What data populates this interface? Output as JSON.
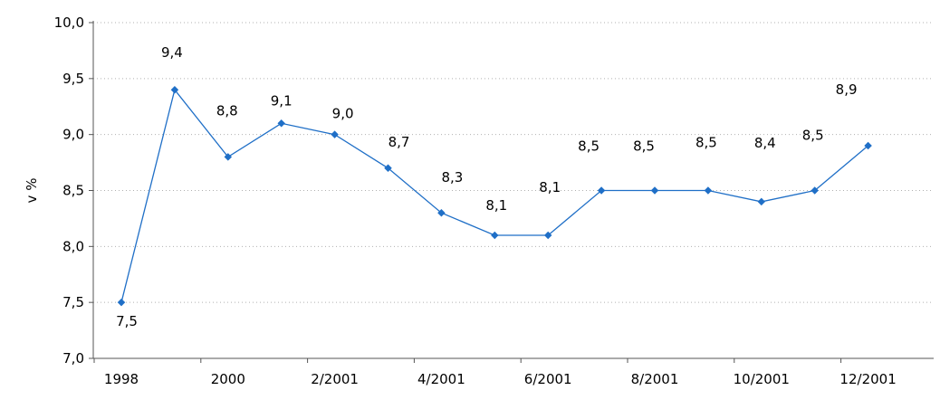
{
  "chart_data": {
    "type": "line",
    "title": "",
    "xlabel": "",
    "ylabel": "v %",
    "ylim": [
      7.0,
      10.0
    ],
    "ytick_values": [
      7.0,
      7.5,
      8.0,
      8.5,
      9.0,
      9.5,
      10.0
    ],
    "ytick_labels": [
      "7,0",
      "7,5",
      "8,0",
      "8,5",
      "9,0",
      "9,5",
      "10,0"
    ],
    "xtick_labels": [
      "1998",
      "2000",
      "2/2001",
      "4/2001",
      "6/2001",
      "8/2001",
      "10/2001",
      "12/2001"
    ],
    "grid": "horizontal dotted",
    "legend": "none",
    "series": [
      {
        "color": "#1f6fc7",
        "values": [
          7.5,
          9.4,
          8.8,
          9.1,
          9.0,
          8.7,
          8.3,
          8.1,
          8.1,
          8.5,
          8.5,
          8.5,
          8.4,
          8.5,
          8.9
        ],
        "labels": [
          "7,5",
          "9,4",
          "8,8",
          "9,1",
          "9,0",
          "8,7",
          "8,3",
          "8,1",
          "8,1",
          "8,5",
          "8,5",
          "8,5",
          "8,4",
          "8,5",
          "8,9"
        ]
      }
    ]
  }
}
